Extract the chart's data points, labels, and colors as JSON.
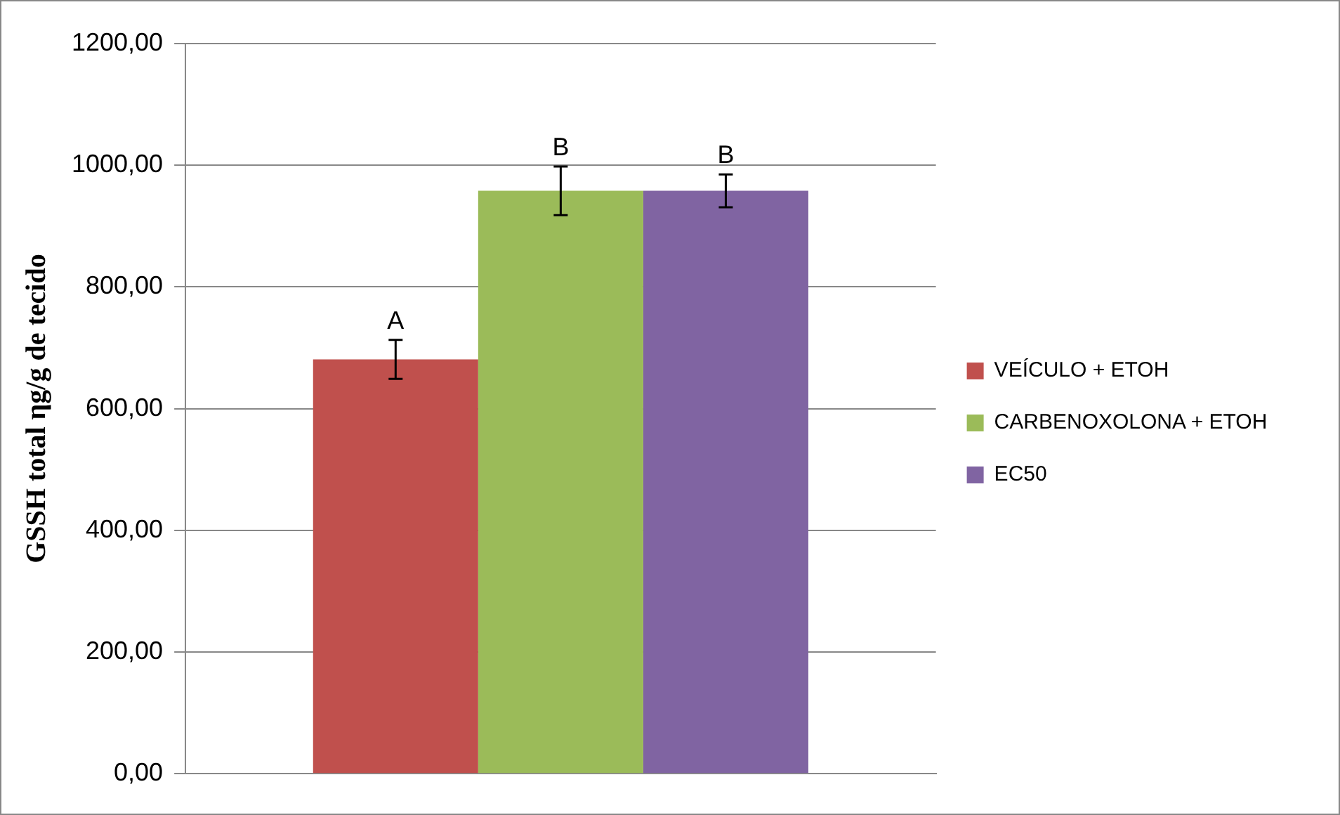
{
  "chart_data": {
    "type": "bar",
    "ylabel": "GSSH total ηg/g de tecido",
    "categories": [
      null
    ],
    "series": [
      {
        "name": "VEÍCULO + ETOH",
        "color": "#c0504d",
        "values": [
          681
        ],
        "errors": [
          32
        ]
      },
      {
        "name": "CARBENOXOLONA + ETOH",
        "color": "#9bbb59",
        "values": [
          958
        ],
        "errors": [
          40
        ]
      },
      {
        "name": "EC50",
        "color": "#8064a2",
        "values": [
          958
        ],
        "errors": [
          27
        ]
      }
    ],
    "ylim": [
      0,
      1200
    ],
    "yticks": [
      {
        "value": 0,
        "label": "0,00"
      },
      {
        "value": 200,
        "label": "200,00"
      },
      {
        "value": 400,
        "label": "400,00"
      },
      {
        "value": 600,
        "label": "600,00"
      },
      {
        "value": 800,
        "label": "800,00"
      },
      {
        "value": 1000,
        "label": "1000,00"
      },
      {
        "value": 1200,
        "label": "1200,00"
      }
    ],
    "grid": "y",
    "legend": "right",
    "annotations": [
      "A",
      "B",
      "B"
    ]
  }
}
